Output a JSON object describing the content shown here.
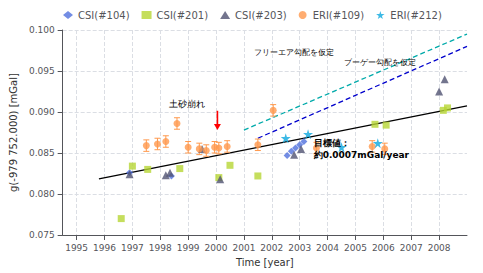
{
  "chart_data": {
    "type": "scatter",
    "xlabel": "Time [year]",
    "ylabel": "g(-979 752.000) [mGal]",
    "xlim": [
      1994.5,
      2009.0
    ],
    "ylim": [
      0.075,
      0.1
    ],
    "xticks": [
      1995,
      1996,
      1997,
      1998,
      1999,
      2000,
      2001,
      2002,
      2003,
      2004,
      2005,
      2006,
      2007,
      2008
    ],
    "yticks": [
      0.075,
      {
        "value": 0.08,
        "label": "0.080"
      },
      0.085,
      {
        "value": 0.09,
        "label": "0.090"
      },
      0.095,
      {
        "value": 0.1,
        "label": "0.100"
      }
    ],
    "grid": true,
    "legend": "upper left",
    "series": [
      {
        "name": "CSI(#104)",
        "type": "scatter",
        "marker": "diamond",
        "x": [
          1996.9,
          1998.4,
          2002.55,
          2002.7,
          2002.85,
          2003.0,
          2003.15
        ],
        "values": [
          0.0826,
          0.0822,
          0.0847,
          0.0852,
          0.0856,
          0.086,
          0.0864
        ]
      },
      {
        "name": "CSI(#201)",
        "type": "scatter",
        "marker": "square",
        "x": [
          1996.6,
          1997.0,
          1997.55,
          1998.7,
          2000.1,
          2000.5,
          2001.5,
          2005.7,
          2006.1,
          2008.15,
          2008.3
        ],
        "values": [
          0.077,
          0.0834,
          0.083,
          0.0831,
          0.082,
          0.0835,
          0.0822,
          0.0885,
          0.0884,
          0.0902,
          0.0905
        ]
      },
      {
        "name": "CSI(#203)",
        "type": "scatter",
        "marker": "triangle",
        "x": [
          1996.9,
          1998.2,
          1998.35,
          1999.5,
          2000.15,
          2002.8,
          2003.05,
          2008.0,
          2008.2
        ],
        "values": [
          0.0824,
          0.0823,
          0.0826,
          0.0855,
          0.0818,
          0.0848,
          0.0855,
          0.0925,
          0.094
        ]
      },
      {
        "name": "ERI(#109)",
        "type": "scatter",
        "marker": "circle",
        "x": [
          1997.5,
          1997.9,
          1998.2,
          1998.6,
          1999.0,
          1999.4,
          1999.65,
          1999.95,
          2000.1,
          2000.4,
          2001.5,
          2002.05,
          2003.6,
          2005.6,
          2006.05
        ],
        "values": [
          0.0859,
          0.0861,
          0.0864,
          0.0886,
          0.0857,
          0.0855,
          0.0853,
          0.0857,
          0.0856,
          0.0858,
          0.086,
          0.0902,
          0.0856,
          0.0858,
          0.0855
        ],
        "yerr": 0.0007
      },
      {
        "name": "ERI(#212)",
        "type": "scatter",
        "marker": "star",
        "x": [
          2002.5,
          2003.3,
          2004.5,
          2005.8
        ],
        "values": [
          0.0868,
          0.0873,
          0.0857,
          0.0862
        ]
      },
      {
        "type": "line",
        "color": "#000000",
        "line_style": "solid",
        "x": [
          1995.8,
          2009.0
        ],
        "values": [
          0.08185,
          0.09075
        ]
      },
      {
        "type": "line",
        "color": "#00aaaa",
        "line_style": "dashed",
        "x": [
          2001.0,
          2009.0
        ],
        "values": [
          0.0878,
          0.0995
        ]
      },
      {
        "type": "line",
        "color": "#0000cc",
        "line_style": "dashed",
        "x": [
          2001.5,
          2009.0
        ],
        "values": [
          0.0868,
          0.098
        ]
      }
    ],
    "annotations": [
      {
        "text": "土砂崩れ",
        "x": 1999.6,
        "y": 0.09025
      },
      {
        "text": [
          "目標値：",
          "約0.0007mGal/year"
        ],
        "x": 2003.5,
        "y": 0.087
      },
      {
        "text": "フリーエア勾配を仮定",
        "x": 2001.35,
        "y": 0.0973
      },
      {
        "text": "ブーゲー勾配を仮定",
        "x": 2004.6,
        "y": 0.096
      }
    ],
    "arrows": [
      {
        "x": 2000.05,
        "y_start": 0.09015,
        "y_end": 0.0878,
        "color": "#ff0000"
      }
    ]
  }
}
